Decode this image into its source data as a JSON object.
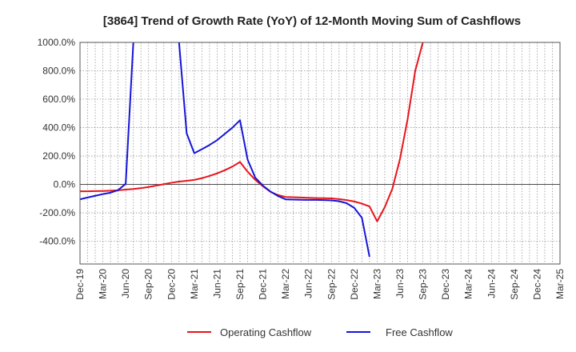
{
  "chart_data": {
    "type": "line",
    "title": "[3864]  Trend of Growth Rate (YoY) of 12-Month Moving Sum of Cashflows",
    "xlabel": "",
    "ylabel": "",
    "x_tick_labels": [
      "Dec-19",
      "Mar-20",
      "Jun-20",
      "Sep-20",
      "Dec-20",
      "Mar-21",
      "Jun-21",
      "Sep-21",
      "Dec-21",
      "Mar-22",
      "Jun-22",
      "Sep-22",
      "Dec-22",
      "Mar-23",
      "Jun-23",
      "Sep-23",
      "Dec-23",
      "Mar-24",
      "Jun-24",
      "Sep-24",
      "Dec-24",
      "Mar-25"
    ],
    "y_tick_labels": [
      "1000.0%",
      "800.0%",
      "600.0%",
      "400.0%",
      "200.0%",
      "0.0%",
      "-200.0%",
      "-400.0%"
    ],
    "y_ticks": [
      1000,
      800,
      600,
      400,
      200,
      0,
      -200,
      -400
    ],
    "ylim": [
      -560,
      1000
    ],
    "grid": true,
    "legend_position": "bottom",
    "series": [
      {
        "name": "Operating Cashflow",
        "color": "#e8141a",
        "x": [
          "Dec-19",
          "Jan-20",
          "Feb-20",
          "Mar-20",
          "Apr-20",
          "May-20",
          "Jun-20",
          "Jul-20",
          "Aug-20",
          "Sep-20",
          "Oct-20",
          "Nov-20",
          "Dec-20",
          "Jan-21",
          "Feb-21",
          "Mar-21",
          "Apr-21",
          "May-21",
          "Jun-21",
          "Jul-21",
          "Aug-21",
          "Sep-21",
          "Oct-21",
          "Nov-21",
          "Dec-21",
          "Jan-22",
          "Feb-22",
          "Mar-22",
          "Apr-22",
          "May-22",
          "Jun-22",
          "Jul-22",
          "Aug-22",
          "Sep-22",
          "Oct-22",
          "Nov-22",
          "Dec-22",
          "Jan-23",
          "Feb-23",
          "Mar-23",
          "Apr-23",
          "May-23",
          "Jun-23",
          "Jul-23",
          "Aug-23",
          "Sep-23"
        ],
        "values": [
          -48,
          -48,
          -47,
          -46,
          -44,
          -41,
          -36,
          -32,
          -26,
          -18,
          -8,
          2,
          12,
          20,
          26,
          32,
          44,
          60,
          78,
          100,
          126,
          158,
          90,
          32,
          -12,
          -52,
          -75,
          -88,
          -90,
          -92,
          -94,
          -96,
          -97,
          -98,
          -103,
          -110,
          -120,
          -135,
          -155,
          -260,
          -160,
          -30,
          180,
          460,
          800,
          1000
        ]
      },
      {
        "name": "Free Cashflow",
        "color": "#1515d8",
        "x": [
          "Dec-19",
          "Jan-20",
          "Feb-20",
          "Mar-20",
          "Apr-20",
          "May-20",
          "Jun-20",
          "Jul-20",
          "Aug-20",
          "Sep-20",
          "Oct-20",
          "Nov-20",
          "Dec-20",
          "Jan-21",
          "Feb-21",
          "Mar-21",
          "Apr-21",
          "May-21",
          "Jun-21",
          "Jul-21",
          "Aug-21",
          "Sep-21",
          "Oct-21",
          "Nov-21",
          "Dec-21",
          "Jan-22",
          "Feb-22",
          "Mar-22",
          "Apr-22",
          "May-22",
          "Jun-22",
          "Jul-22",
          "Aug-22",
          "Sep-22",
          "Oct-22",
          "Nov-22",
          "Dec-22",
          "Jan-23",
          "Feb-23",
          "Mar-23"
        ],
        "values": [
          -105,
          -92,
          -80,
          -68,
          -58,
          -40,
          5,
          1000,
          null,
          null,
          null,
          null,
          null,
          1000,
          360,
          220,
          248,
          278,
          312,
          356,
          400,
          452,
          175,
          48,
          -8,
          -50,
          -82,
          -105,
          -107,
          -108,
          -109,
          -109,
          -110,
          -112,
          -118,
          -132,
          -165,
          -235,
          -510,
          null
        ]
      }
    ]
  }
}
